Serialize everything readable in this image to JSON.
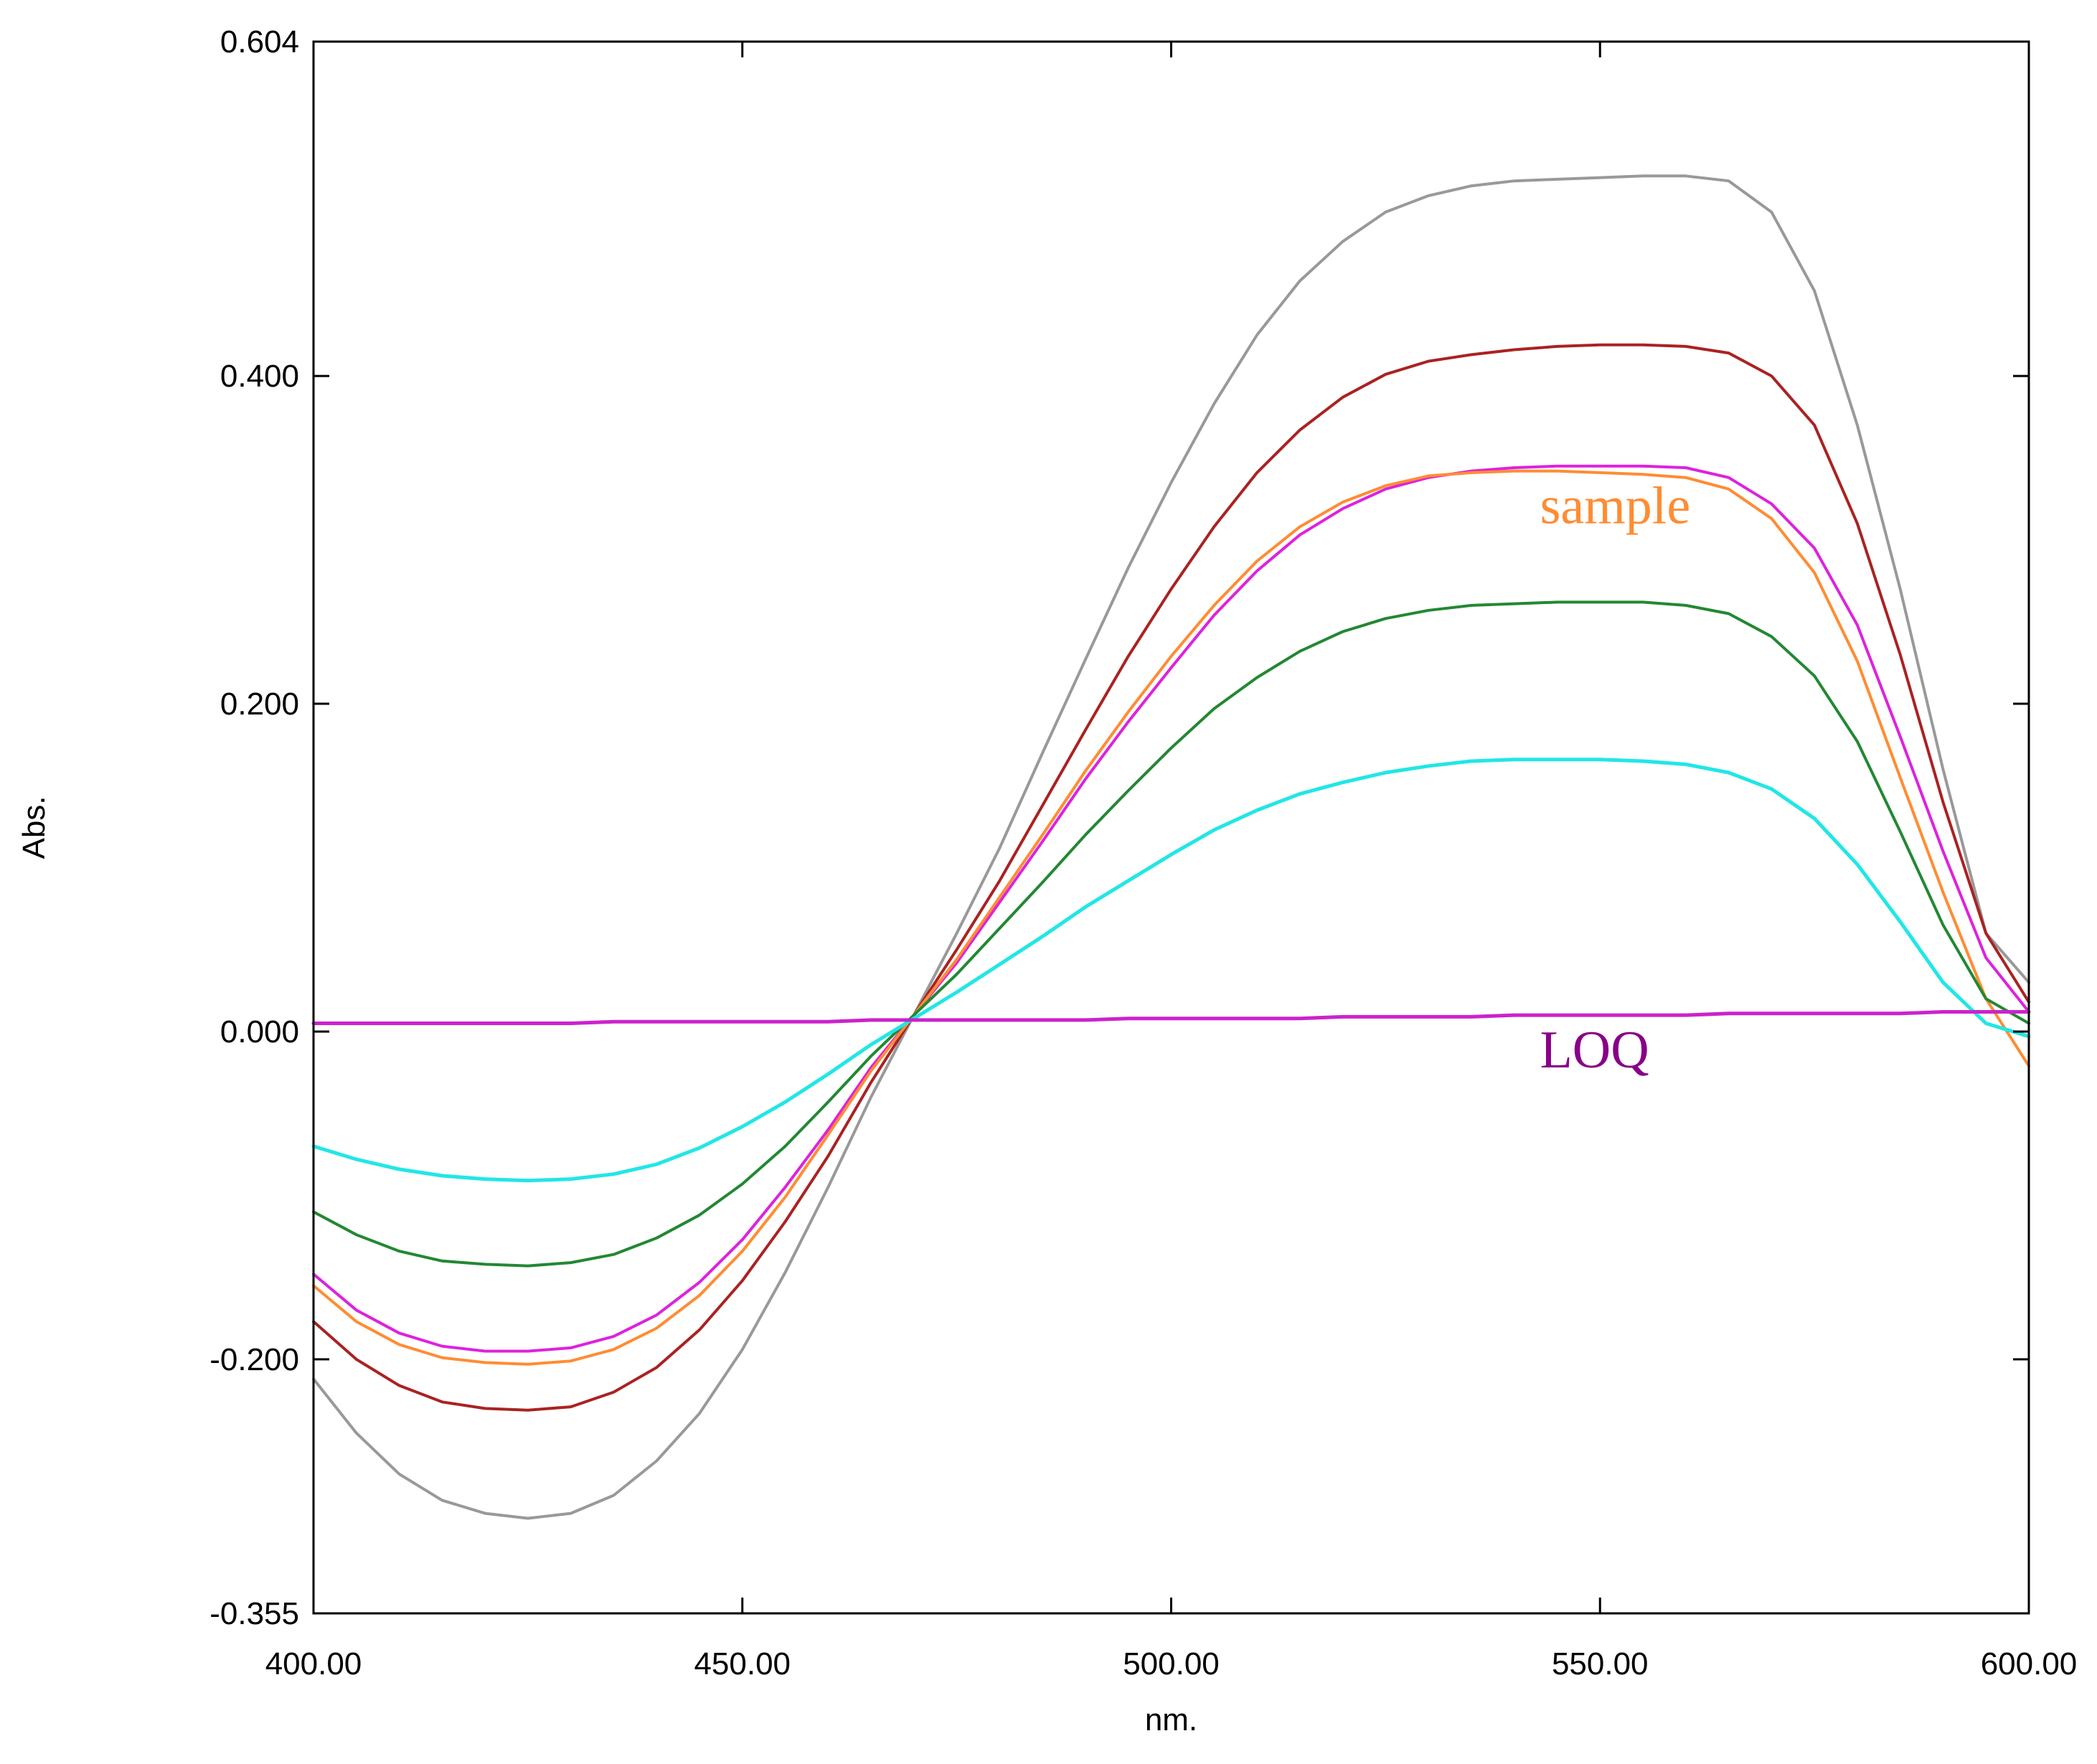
{
  "chart_data": {
    "type": "line",
    "title": "",
    "xlabel": "nm.",
    "ylabel": "Abs.",
    "xlim": [
      400,
      600
    ],
    "ylim": [
      -0.355,
      0.604
    ],
    "grid": false,
    "x_ticks": [
      400,
      450,
      500,
      550,
      600
    ],
    "x_tick_labels": [
      "400.00",
      "450.00",
      "500.00",
      "550.00",
      "600.00"
    ],
    "y_ticks": [
      -0.355,
      -0.2,
      0,
      0.2,
      0.4,
      0.604
    ],
    "y_tick_labels": [
      "-0.355",
      "-0.200",
      "0.000",
      "0.200",
      "0.400",
      "0.604"
    ],
    "x": [
      400,
      405,
      410,
      415,
      420,
      425,
      430,
      435,
      440,
      445,
      450,
      455,
      460,
      465,
      470,
      475,
      480,
      485,
      490,
      495,
      500,
      505,
      510,
      515,
      520,
      525,
      530,
      535,
      540,
      545,
      550,
      555,
      560,
      565,
      570,
      575,
      580,
      585,
      590,
      595,
      600
    ],
    "series": [
      {
        "name": "gray",
        "color": "#999999",
        "values": [
          -0.212,
          -0.245,
          -0.27,
          -0.286,
          -0.294,
          -0.297,
          -0.294,
          -0.283,
          -0.262,
          -0.233,
          -0.194,
          -0.147,
          -0.095,
          -0.04,
          0.01,
          0.06,
          0.112,
          0.17,
          0.227,
          0.283,
          0.335,
          0.383,
          0.425,
          0.458,
          0.482,
          0.5,
          0.51,
          0.516,
          0.519,
          0.52,
          0.521,
          0.522,
          0.522,
          0.519,
          0.5,
          0.452,
          0.37,
          0.27,
          0.16,
          0.06,
          0.03
        ]
      },
      {
        "name": "dark-red",
        "color": "#aa2222",
        "values": [
          -0.177,
          -0.2,
          -0.216,
          -0.226,
          -0.23,
          -0.231,
          -0.229,
          -0.22,
          -0.205,
          -0.182,
          -0.152,
          -0.116,
          -0.076,
          -0.031,
          0.01,
          0.05,
          0.092,
          0.138,
          0.184,
          0.229,
          0.27,
          0.308,
          0.341,
          0.367,
          0.387,
          0.401,
          0.409,
          0.413,
          0.416,
          0.418,
          0.419,
          0.419,
          0.418,
          0.414,
          0.4,
          0.37,
          0.31,
          0.23,
          0.14,
          0.06,
          0.018
        ]
      },
      {
        "name": "magenta",
        "color": "#dd22dd",
        "values": [
          -0.148,
          -0.17,
          -0.184,
          -0.192,
          -0.195,
          -0.195,
          -0.193,
          -0.186,
          -0.173,
          -0.153,
          -0.127,
          -0.095,
          -0.06,
          -0.022,
          0.01,
          0.042,
          0.079,
          0.116,
          0.154,
          0.189,
          0.222,
          0.254,
          0.281,
          0.303,
          0.319,
          0.331,
          0.338,
          0.342,
          0.344,
          0.345,
          0.345,
          0.345,
          0.344,
          0.338,
          0.322,
          0.295,
          0.248,
          0.18,
          0.11,
          0.045,
          0.012
        ]
      },
      {
        "name": "sample",
        "color": "#ff8c33",
        "values": [
          -0.155,
          -0.177,
          -0.191,
          -0.199,
          -0.202,
          -0.203,
          -0.201,
          -0.194,
          -0.181,
          -0.161,
          -0.134,
          -0.101,
          -0.063,
          -0.024,
          0.01,
          0.044,
          0.082,
          0.12,
          0.159,
          0.195,
          0.229,
          0.26,
          0.287,
          0.308,
          0.323,
          0.333,
          0.339,
          0.341,
          0.342,
          0.342,
          0.341,
          0.34,
          0.338,
          0.331,
          0.313,
          0.28,
          0.226,
          0.155,
          0.085,
          0.02,
          -0.021
        ]
      },
      {
        "name": "green",
        "color": "#228833",
        "values": [
          -0.11,
          -0.124,
          -0.134,
          -0.14,
          -0.142,
          -0.143,
          -0.141,
          -0.136,
          -0.126,
          -0.112,
          -0.093,
          -0.07,
          -0.043,
          -0.015,
          0.01,
          0.035,
          0.063,
          0.091,
          0.12,
          0.147,
          0.173,
          0.197,
          0.216,
          0.232,
          0.244,
          0.252,
          0.257,
          0.26,
          0.261,
          0.262,
          0.262,
          0.262,
          0.26,
          0.255,
          0.241,
          0.217,
          0.177,
          0.122,
          0.065,
          0.02,
          0.005
        ]
      },
      {
        "name": "cyan",
        "color": "#22e6e6",
        "values": [
          -0.07,
          -0.078,
          -0.084,
          -0.088,
          -0.09,
          -0.091,
          -0.09,
          -0.087,
          -0.081,
          -0.071,
          -0.058,
          -0.043,
          -0.026,
          -0.008,
          0.008,
          0.024,
          0.041,
          0.058,
          0.076,
          0.092,
          0.108,
          0.123,
          0.135,
          0.145,
          0.152,
          0.158,
          0.162,
          0.165,
          0.166,
          0.166,
          0.166,
          0.165,
          0.163,
          0.158,
          0.148,
          0.13,
          0.102,
          0.067,
          0.03,
          0.005,
          -0.003
        ]
      },
      {
        "name": "LOQ",
        "color": "#cc22cc",
        "values": [
          0.005,
          0.005,
          0.005,
          0.005,
          0.005,
          0.005,
          0.005,
          0.006,
          0.006,
          0.006,
          0.006,
          0.006,
          0.006,
          0.007,
          0.007,
          0.007,
          0.007,
          0.007,
          0.007,
          0.008,
          0.008,
          0.008,
          0.008,
          0.008,
          0.009,
          0.009,
          0.009,
          0.009,
          0.01,
          0.01,
          0.01,
          0.01,
          0.01,
          0.011,
          0.011,
          0.011,
          0.011,
          0.011,
          0.012,
          0.012,
          0.012
        ]
      }
    ],
    "annotations": [
      {
        "text": "sample",
        "color": "#ff8c33",
        "x": 543,
        "y": 0.31
      },
      {
        "text": "LOQ",
        "color": "#880088",
        "x": 543,
        "y": -0.022
      }
    ]
  }
}
